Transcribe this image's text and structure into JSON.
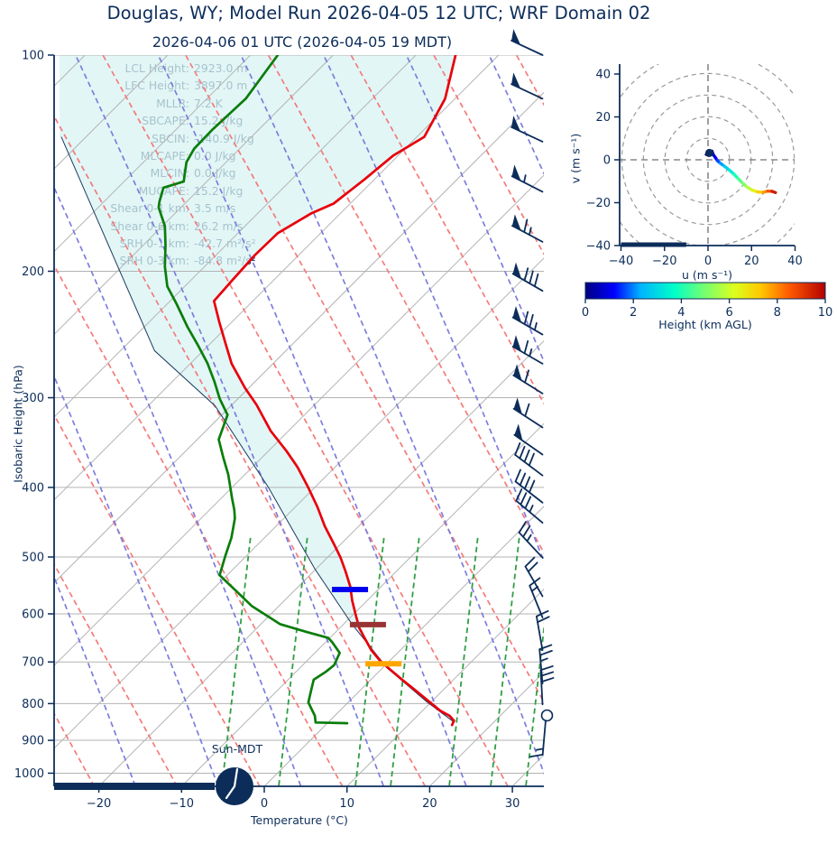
{
  "header": {
    "title": "Douglas, WY; Model Run 2026-04-05 12 UTC; WRF Domain 02",
    "subtitle": "2026-04-06 01 UTC  (2026-04-05 19 MDT)"
  },
  "stats": [
    {
      "label": "LCL Height:",
      "value": "2923.0 m"
    },
    {
      "label": "LFC Height:",
      "value": "3897.0 m"
    },
    {
      "label": "MLLR:",
      "value": "7.2 K"
    },
    {
      "label": "SBCAPE:",
      "value": "15.2 J/kg"
    },
    {
      "label": "SBCIN:",
      "value": "-140.9 J/kg"
    },
    {
      "label": "MLCAPE:",
      "value": "0.0 J/kg"
    },
    {
      "label": "MLCIN:",
      "value": "0.0 J/kg"
    },
    {
      "label": "MUCAPE:",
      "value": "15.2 J/kg"
    },
    {
      "label": "Shear 0-1 km:",
      "value": "3.5 m/s"
    },
    {
      "label": "Shear 0-6 km:",
      "value": "26.2 m/s"
    },
    {
      "label": "SRH 0-1 km:",
      "value": "-42.7 m²/s²"
    },
    {
      "label": "SRH 0-3 km:",
      "value": "-84.8 m²/s²"
    }
  ],
  "skewt": {
    "xlabel": "Temperature (°C)",
    "ylabel": "Isobaric Height (hPa)",
    "sun_label": "Sun-MDT",
    "x_ticks": [
      -20,
      -10,
      0,
      10,
      20,
      30
    ],
    "y_ticks": [
      100,
      200,
      300,
      400,
      500,
      600,
      700,
      800,
      900,
      1000
    ]
  },
  "colors": {
    "navy": "#0c2d5a",
    "temperature": "#e8000b",
    "dewpoint": "#0a7d0a",
    "parcel": "#1b3a5e",
    "cin_shade": "#d8f3f3",
    "isotherm": "#b3b3b3",
    "dry_adiabat": "#f47b7b",
    "moist_adiabat": "#7d7ddd",
    "mixing_ratio": "#2f9e44"
  },
  "chart_data": {
    "type": "skewt-logp-sounding",
    "skewt": {
      "pressure_range_hPa": [
        100,
        1043
      ],
      "temperature_axis_C": [
        -25.4,
        33.8
      ],
      "skew_deg": 45,
      "temperature_profile_pT": [
        [
          100,
          -65.2
        ],
        [
          115,
          -61.2
        ],
        [
          130,
          -59.1
        ],
        [
          138,
          -60.6
        ],
        [
          149,
          -61.2
        ],
        [
          161,
          -62.0
        ],
        [
          166,
          -63.5
        ],
        [
          177,
          -65.2
        ],
        [
          190,
          -65.3
        ],
        [
          206,
          -65.0
        ],
        [
          220,
          -64.7
        ],
        [
          235,
          -61.6
        ],
        [
          252,
          -58.2
        ],
        [
          269,
          -55.0
        ],
        [
          291,
          -50.4
        ],
        [
          307,
          -47.0
        ],
        [
          334,
          -42.1
        ],
        [
          356,
          -37.8
        ],
        [
          375,
          -34.5
        ],
        [
          400,
          -30.8
        ],
        [
          426,
          -27.3
        ],
        [
          453,
          -24.1
        ],
        [
          480,
          -20.8
        ],
        [
          501,
          -18.4
        ],
        [
          524,
          -16.1
        ],
        [
          550,
          -13.7
        ],
        [
          575,
          -11.8
        ],
        [
          600,
          -9.8
        ],
        [
          627,
          -7.7
        ],
        [
          648,
          -5.8
        ],
        [
          674,
          -3.5
        ],
        [
          698,
          -1.1
        ],
        [
          718,
          1.2
        ],
        [
          741,
          3.8
        ],
        [
          765,
          6.5
        ],
        [
          792,
          9.4
        ],
        [
          818,
          12.1
        ],
        [
          832,
          13.9
        ],
        [
          845,
          15.0
        ],
        [
          857,
          15.3
        ]
      ],
      "dewpoint_profile_pT": [
        [
          100,
          -86.7
        ],
        [
          115,
          -85.3
        ],
        [
          127,
          -85.6
        ],
        [
          135,
          -85.5
        ],
        [
          141,
          -84.8
        ],
        [
          150,
          -82.8
        ],
        [
          153,
          -84.5
        ],
        [
          160,
          -83.3
        ],
        [
          163,
          -82.7
        ],
        [
          173,
          -79.7
        ],
        [
          184,
          -77.3
        ],
        [
          197,
          -74.8
        ],
        [
          210,
          -72.1
        ],
        [
          222,
          -68.9
        ],
        [
          239,
          -64.8
        ],
        [
          254,
          -61.2
        ],
        [
          269,
          -57.9
        ],
        [
          285,
          -54.9
        ],
        [
          301,
          -52.2
        ],
        [
          317,
          -49.3
        ],
        [
          343,
          -47.4
        ],
        [
          364,
          -44.6
        ],
        [
          384,
          -42.0
        ],
        [
          415,
          -38.6
        ],
        [
          430,
          -37.0
        ],
        [
          442,
          -35.9
        ],
        [
          470,
          -34.0
        ],
        [
          497,
          -32.6
        ],
        [
          530,
          -30.9
        ],
        [
          585,
          -23.3
        ],
        [
          620,
          -17.7
        ],
        [
          636,
          -13.5
        ],
        [
          648,
          -10.2
        ],
        [
          657,
          -9.2
        ],
        [
          680,
          -7.0
        ],
        [
          707,
          -6.2
        ],
        [
          723,
          -6.4
        ],
        [
          741,
          -6.9
        ],
        [
          770,
          -5.8
        ],
        [
          797,
          -4.8
        ],
        [
          832,
          -2.4
        ],
        [
          850,
          -1.5
        ],
        [
          852,
          2.4
        ]
      ],
      "parcel_profile_pT": [
        [
          130,
          -103.0
        ],
        [
          258,
          -65.9
        ],
        [
          308,
          -51.9
        ],
        [
          400,
          -35.6
        ],
        [
          519,
          -20.2
        ],
        [
          620,
          -9.0
        ],
        [
          714,
          0.6
        ],
        [
          795,
          9.4
        ],
        [
          850,
          15.3
        ]
      ],
      "shading": "CIN region between parcel profile and temperature profile",
      "level_markers": [
        {
          "name": "lfc-marker",
          "p": 555,
          "t": -13.4,
          "color": "#0000ee"
        },
        {
          "name": "lcl-marker",
          "p": 621,
          "t": -7.0,
          "color": "#993333"
        },
        {
          "name": "freezing-level-marker",
          "p": 704,
          "t": -0.4,
          "color": "#ffa500"
        }
      ],
      "wind_barbs": [
        {
          "p": 100,
          "dir": 155,
          "pen": 1,
          "full": 0,
          "half": 0
        },
        {
          "p": 115,
          "dir": 155,
          "pen": 1,
          "full": 0,
          "half": 0
        },
        {
          "p": 132,
          "dir": 155,
          "pen": 1,
          "full": 0,
          "half": 0
        },
        {
          "p": 155,
          "dir": 153,
          "pen": 1,
          "full": 0,
          "half": 1
        },
        {
          "p": 182,
          "dir": 152,
          "pen": 1,
          "full": 1,
          "half": 1
        },
        {
          "p": 213,
          "dir": 150,
          "pen": 1,
          "full": 3,
          "half": 0
        },
        {
          "p": 245,
          "dir": 150,
          "pen": 1,
          "full": 2,
          "half": 1
        },
        {
          "p": 269,
          "dir": 150,
          "pen": 1,
          "full": 1,
          "half": 1
        },
        {
          "p": 296,
          "dir": 148,
          "pen": 1,
          "full": 1,
          "half": 0
        },
        {
          "p": 330,
          "dir": 147,
          "pen": 1,
          "full": 1,
          "half": 0
        },
        {
          "p": 360,
          "dir": 145,
          "pen": 1,
          "full": 0,
          "half": 0
        },
        {
          "p": 385,
          "dir": 143,
          "pen": 0,
          "full": 4,
          "half": 0
        },
        {
          "p": 420,
          "dir": 142,
          "pen": 0,
          "full": 4,
          "half": 0
        },
        {
          "p": 448,
          "dir": 140,
          "pen": 0,
          "full": 3,
          "half": 1
        },
        {
          "p": 501,
          "dir": 133,
          "pen": 0,
          "full": 2,
          "half": 1
        },
        {
          "p": 567,
          "dir": 120,
          "pen": 0,
          "full": 2,
          "half": 0
        },
        {
          "p": 607,
          "dir": 112,
          "pen": 0,
          "full": 1,
          "half": 1
        },
        {
          "p": 674,
          "dir": 100,
          "pen": 0,
          "full": 2,
          "half": 0
        },
        {
          "p": 750,
          "dir": 95,
          "pen": 0,
          "full": 2,
          "half": 1
        },
        {
          "p": 802,
          "dir": 93,
          "pen": 0,
          "full": 3,
          "half": 0
        }
      ],
      "surface_station": {
        "p": 832,
        "dir": -95,
        "full": 1,
        "half": 1,
        "circle": true
      },
      "surface_time_clock": {
        "label": "Sun-MDT",
        "hour_hand": "7",
        "minute_hand": "12"
      }
    },
    "hodograph": {
      "xlabel": "u (m s⁻¹)",
      "ylabel": "v (m s⁻¹)",
      "u_ticks": [
        -40,
        -20,
        0,
        20,
        40
      ],
      "v_ticks": [
        40,
        20,
        0,
        -20,
        -40
      ],
      "u_range": [
        -40,
        40
      ],
      "v_range": [
        -40,
        40
      ],
      "rings": [
        10,
        20,
        30,
        40,
        50
      ],
      "trace_uvh": [
        [
          -0.8,
          2.5,
          0.0
        ],
        [
          0.2,
          4.2,
          0.1
        ],
        [
          1.0,
          2.6,
          0.2
        ],
        [
          1.8,
          4.0,
          0.3
        ],
        [
          2.4,
          2.4,
          0.5
        ],
        [
          3.4,
          1.0,
          0.9
        ],
        [
          4.3,
          -0.4,
          1.4
        ],
        [
          5.6,
          -1.6,
          1.9
        ],
        [
          7.4,
          -2.9,
          2.4
        ],
        [
          9.6,
          -4.6,
          3.0
        ],
        [
          11.8,
          -6.6,
          3.6
        ],
        [
          13.8,
          -8.7,
          4.2
        ],
        [
          15.8,
          -10.8,
          4.8
        ],
        [
          17.8,
          -12.6,
          5.4
        ],
        [
          20.2,
          -14.1,
          6.1
        ],
        [
          22.8,
          -15.0,
          6.8
        ],
        [
          25.4,
          -15.2,
          7.5
        ],
        [
          27.4,
          -14.6,
          8.2
        ],
        [
          29.4,
          -14.7,
          9.0
        ],
        [
          31.0,
          -15.3,
          10.0
        ]
      ],
      "shear_bar_u": [
        -40,
        -10
      ]
    },
    "colorbar": {
      "label": "Height (km AGL)",
      "ticks": [
        0,
        2,
        4,
        6,
        8,
        10
      ],
      "min": 0,
      "max": 10,
      "palette": "jet"
    }
  }
}
